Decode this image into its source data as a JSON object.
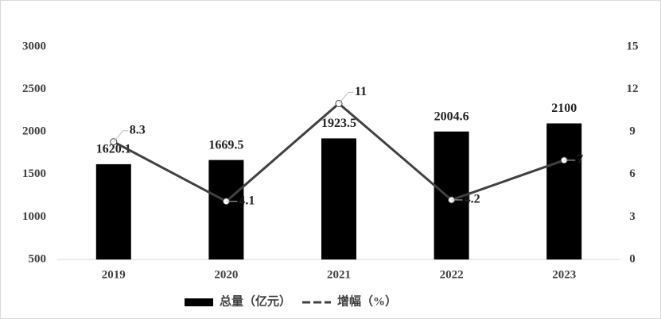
{
  "chart_data": {
    "type": "bar-line",
    "categories": [
      "2019",
      "2020",
      "2021",
      "2022",
      "2023"
    ],
    "series": [
      {
        "name": "总量（亿元）",
        "type": "bar",
        "color": "#000000",
        "values": [
          1620.1,
          1669.5,
          1923.5,
          2004.6,
          2100
        ]
      },
      {
        "name": "增幅（%）",
        "type": "line",
        "axis": "y2",
        "color": "#404040",
        "values": [
          8.3,
          4.1,
          11,
          4.2,
          7
        ]
      }
    ],
    "ylim": [
      500,
      3000
    ],
    "yticks": [
      500,
      1000,
      1500,
      2000,
      2500,
      3000
    ],
    "y2lim": [
      0,
      15
    ],
    "y2ticks": [
      0,
      3,
      6,
      9,
      12,
      15
    ],
    "grid": false,
    "legend": "bottom"
  }
}
